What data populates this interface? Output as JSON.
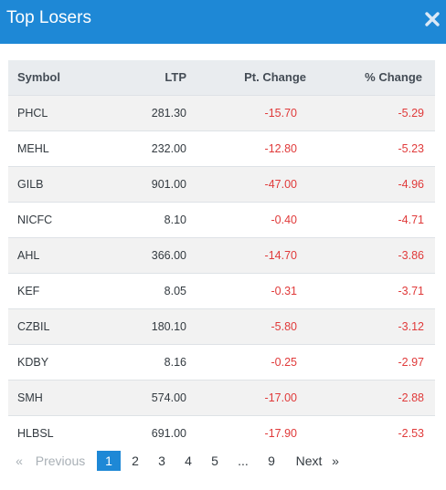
{
  "header": {
    "title": "Top Losers",
    "close_icon": "close-icon"
  },
  "table": {
    "columns": [
      "Symbol",
      "LTP",
      "Pt. Change",
      "% Change"
    ],
    "rows": [
      {
        "symbol": "PHCL",
        "ltp": "281.30",
        "pt_change": "-15.70",
        "pct_change": "-5.29"
      },
      {
        "symbol": "MEHL",
        "ltp": "232.00",
        "pt_change": "-12.80",
        "pct_change": "-5.23"
      },
      {
        "symbol": "GILB",
        "ltp": "901.00",
        "pt_change": "-47.00",
        "pct_change": "-4.96"
      },
      {
        "symbol": "NICFC",
        "ltp": "8.10",
        "pt_change": "-0.40",
        "pct_change": "-4.71"
      },
      {
        "symbol": "AHL",
        "ltp": "366.00",
        "pt_change": "-14.70",
        "pct_change": "-3.86"
      },
      {
        "symbol": "KEF",
        "ltp": "8.05",
        "pt_change": "-0.31",
        "pct_change": "-3.71"
      },
      {
        "symbol": "CZBIL",
        "ltp": "180.10",
        "pt_change": "-5.80",
        "pct_change": "-3.12"
      },
      {
        "symbol": "KDBY",
        "ltp": "8.16",
        "pt_change": "-0.25",
        "pct_change": "-2.97"
      },
      {
        "symbol": "SMH",
        "ltp": "574.00",
        "pt_change": "-17.00",
        "pct_change": "-2.88"
      },
      {
        "symbol": "HLBSL",
        "ltp": "691.00",
        "pt_change": "-17.90",
        "pct_change": "-2.53"
      }
    ]
  },
  "pagination": {
    "first": "«",
    "previous": "Previous",
    "pages": [
      "1",
      "2",
      "3",
      "4",
      "5"
    ],
    "ellipsis": "...",
    "last_page": "9",
    "next": "Next",
    "last": "»",
    "current_page": "1"
  },
  "colors": {
    "header_bg": "#1e88d6",
    "negative": "#e03a3a",
    "active_page": "#1e88d6"
  }
}
